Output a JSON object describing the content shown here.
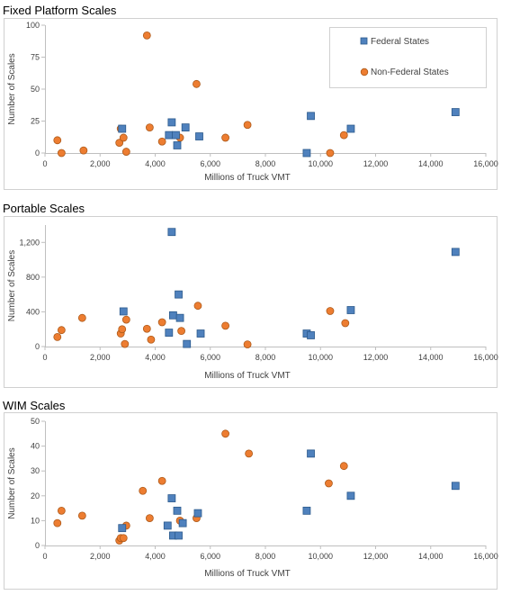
{
  "legend": {
    "federal": "Federal States",
    "nonfederal": "Non-Federal States"
  },
  "colors": {
    "federal_fill": "#4f81bd",
    "federal_stroke": "#2c5a8c",
    "nonfederal_fill": "#ed7d31",
    "nonfederal_stroke": "#ad5a1a",
    "frame": "#d0d0d0",
    "axis": "#bfbfbf"
  },
  "chart_data": [
    {
      "type": "scatter",
      "title": "Fixed Platform Scales",
      "xlabel": "Millions of Truck VMT",
      "ylabel": "Number of Scales",
      "xlim": [
        0,
        16000
      ],
      "ylim": [
        0,
        100
      ],
      "xticks": [
        "0",
        "2,000",
        "4,000",
        "6,000",
        "8,000",
        "10,000",
        "12,000",
        "14,000",
        "16,000"
      ],
      "yticks": [
        "0",
        "25",
        "50",
        "75",
        "100"
      ],
      "grid": false,
      "legend_position": "top-right",
      "series": [
        {
          "name": "Federal States",
          "marker": "square",
          "points": [
            [
              2800,
              19
            ],
            [
              4500,
              14
            ],
            [
              4600,
              24
            ],
            [
              4750,
              14
            ],
            [
              4800,
              6
            ],
            [
              5100,
              20
            ],
            [
              5600,
              13
            ],
            [
              9500,
              0
            ],
            [
              9650,
              29
            ],
            [
              11100,
              19
            ],
            [
              14900,
              32
            ]
          ]
        },
        {
          "name": "Non-Federal States",
          "marker": "circle",
          "points": [
            [
              450,
              10
            ],
            [
              600,
              0
            ],
            [
              1400,
              2
            ],
            [
              2700,
              8
            ],
            [
              2750,
              19
            ],
            [
              2850,
              12
            ],
            [
              2950,
              1
            ],
            [
              3700,
              92
            ],
            [
              3800,
              20
            ],
            [
              4250,
              9
            ],
            [
              4900,
              12
            ],
            [
              5500,
              54
            ],
            [
              6550,
              12
            ],
            [
              7350,
              22
            ],
            [
              10350,
              0
            ],
            [
              10850,
              14
            ]
          ]
        }
      ]
    },
    {
      "type": "scatter",
      "title": "Portable Scales",
      "xlabel": "Millions of Truck VMT",
      "ylabel": "Number of Scales",
      "xlim": [
        0,
        16000
      ],
      "ylim": [
        0,
        1400
      ],
      "xticks": [
        "0",
        "2,000",
        "4,000",
        "6,000",
        "8,000",
        "10,000",
        "12,000",
        "14,000",
        "16,000"
      ],
      "yticks": [
        "0",
        "400",
        "800",
        "1,200"
      ],
      "grid": false,
      "series": [
        {
          "name": "Federal States",
          "marker": "square",
          "points": [
            [
              2850,
              405
            ],
            [
              4500,
              160
            ],
            [
              4600,
              1320
            ],
            [
              4650,
              360
            ],
            [
              4850,
              600
            ],
            [
              4900,
              330
            ],
            [
              5150,
              30
            ],
            [
              5650,
              150
            ],
            [
              9500,
              150
            ],
            [
              9650,
              130
            ],
            [
              11100,
              420
            ],
            [
              14900,
              1090
            ]
          ]
        },
        {
          "name": "Non-Federal States",
          "marker": "circle",
          "points": [
            [
              450,
              110
            ],
            [
              600,
              190
            ],
            [
              1350,
              330
            ],
            [
              2750,
              150
            ],
            [
              2800,
              200
            ],
            [
              2900,
              30
            ],
            [
              2950,
              310
            ],
            [
              3700,
              205
            ],
            [
              3850,
              80
            ],
            [
              4250,
              280
            ],
            [
              4950,
              180
            ],
            [
              5550,
              470
            ],
            [
              6550,
              240
            ],
            [
              7350,
              25
            ],
            [
              10350,
              410
            ],
            [
              10900,
              270
            ]
          ]
        }
      ]
    },
    {
      "type": "scatter",
      "title": "WIM Scales",
      "xlabel": "Millions of Truck VMT",
      "ylabel": "Number of Scales",
      "xlim": [
        0,
        16000
      ],
      "ylim": [
        0,
        50
      ],
      "xticks": [
        "0",
        "2,000",
        "4,000",
        "6,000",
        "8,000",
        "10,000",
        "12,000",
        "14,000",
        "16,000"
      ],
      "yticks": [
        "0",
        "10",
        "20",
        "30",
        "40",
        "50"
      ],
      "grid": false,
      "series": [
        {
          "name": "Federal States",
          "marker": "square",
          "points": [
            [
              2800,
              7
            ],
            [
              4450,
              8
            ],
            [
              4600,
              19
            ],
            [
              4650,
              4
            ],
            [
              4800,
              14
            ],
            [
              4850,
              4
            ],
            [
              5000,
              9
            ],
            [
              5550,
              13
            ],
            [
              9500,
              14
            ],
            [
              9650,
              37
            ],
            [
              11100,
              20
            ],
            [
              14900,
              24
            ]
          ]
        },
        {
          "name": "Non-Federal States",
          "marker": "circle",
          "points": [
            [
              450,
              9
            ],
            [
              600,
              14
            ],
            [
              1350,
              12
            ],
            [
              2700,
              2
            ],
            [
              2750,
              3
            ],
            [
              2850,
              3
            ],
            [
              2950,
              8
            ],
            [
              3550,
              22
            ],
            [
              3800,
              11
            ],
            [
              4250,
              26
            ],
            [
              4900,
              10
            ],
            [
              5500,
              11
            ],
            [
              6550,
              45
            ],
            [
              7400,
              37
            ],
            [
              10300,
              25
            ],
            [
              10850,
              32
            ]
          ]
        }
      ]
    }
  ]
}
